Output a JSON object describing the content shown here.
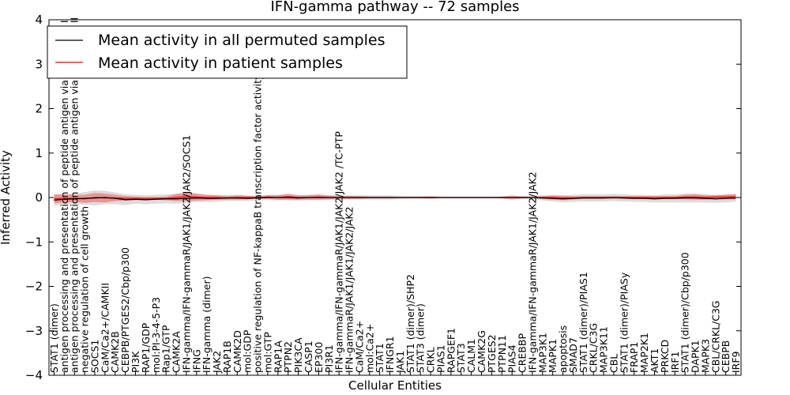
{
  "chart_data": {
    "type": "line",
    "title": "IFN-gamma pathway -- 72 samples",
    "xlabel": "Cellular Entities",
    "ylabel": "Inferred Activity",
    "ylim": [
      -4,
      4
    ],
    "yticks": [
      "4",
      "3",
      "2",
      "1",
      "0",
      "−1",
      "−2",
      "−3",
      "−4"
    ],
    "ytick_values": [
      4,
      3,
      2,
      1,
      0,
      -1,
      -2,
      -3,
      -4
    ],
    "grid": false,
    "legend_position": "top-left",
    "categories": [
      "STAT1 (dimer)",
      "antigen processing and presentation of peptide antigen via MHC class I",
      "antigen processing and presentation of peptide antigen via MHC class II",
      "negative regulation of cell growth",
      "SOCS1",
      "CaM/Ca2+/CAMKII",
      "CAMK2B",
      "CEBPB/PTGES2/Cbp/p300",
      "PI3K",
      "RAP1/GDP",
      "mol:PI-3-4-5-P3",
      "Rap1/GTP",
      "CAMK2A",
      "IFN-gamma/IFN-gammaR/JAK1/JAK2/JAK2/SOCS1",
      "IFNG",
      "IFN-gamma (dimer)",
      "JAK2",
      "RAP1B",
      "CAMK2D",
      "mol:GDP",
      "positive regulation of NF-kappaB transcription factor activity",
      "mol:GTP",
      "RAP1A",
      "PTPN2",
      "PIK3CA",
      "CASP1",
      "EP300",
      "PI3R1",
      "IFN-gamma/IFN-gammaR/JAK1/JAK2/JAK2 /TC-PTP",
      "IFN-gammaR/JAK1/JAK1/JAK2/JAK2",
      "CaM/Ca2+",
      "mol:Ca2+",
      "STAT1",
      "IFNGR1",
      "JAK1",
      "STAT1 (dimer)/SHP2",
      "STAT3 (dimer)",
      "CRKL",
      "PIAS1",
      "RAPGEF1",
      "STAT3",
      "CALM1",
      "CAMK2G",
      "PTGES2",
      "PTPN11",
      "PIAS4",
      "CREBBP",
      "IFN-gamma/IFN-gammaR/JAK1/JAK2/JAK2",
      "MAP3K1",
      "MAPK1",
      "apoptosis",
      "SMAD7",
      "STAT1 (dimer)/PIAS1",
      "CRKL/C3G",
      "MAP3K11",
      "CBL",
      "STAT1 (dimer)/PIASy",
      "FRAP1",
      "MAP2K1",
      "AKT1",
      "PRKCD",
      "IRF1",
      "STAT1 (dimer)/Cbp/p300",
      "DAPK1",
      "MAPK3",
      "CBL/CRKL/C3G",
      "CEBPB",
      "IRF9"
    ],
    "series": [
      {
        "name": "Mean activity in all permuted samples",
        "color": "#000000",
        "values": [
          -0.06,
          -0.04,
          -0.03,
          -0.02,
          -0.01,
          0.0,
          -0.02,
          -0.05,
          -0.04,
          -0.05,
          -0.04,
          -0.03,
          -0.03,
          -0.02,
          -0.01,
          -0.02,
          -0.02,
          -0.01,
          -0.01,
          -0.02,
          -0.01,
          0.0,
          0.0,
          0.0,
          -0.01,
          0.0,
          0.0,
          0.0,
          0.0,
          0.0,
          0.0,
          0.0,
          0.0,
          0.0,
          0.0,
          0.0,
          0.0,
          0.0,
          0.0,
          0.0,
          0.0,
          0.0,
          0.0,
          0.0,
          0.0,
          0.0,
          0.0,
          0.0,
          -0.01,
          -0.02,
          -0.03,
          -0.02,
          -0.01,
          -0.01,
          -0.01,
          0.0,
          -0.01,
          -0.02,
          -0.02,
          -0.03,
          -0.02,
          -0.02,
          -0.01,
          -0.01,
          -0.02,
          -0.03,
          -0.02,
          -0.01
        ],
        "spread": [
          0.12,
          0.12,
          0.12,
          0.14,
          0.17,
          0.15,
          0.13,
          0.12,
          0.1,
          0.1,
          0.1,
          0.1,
          0.11,
          0.1,
          0.09,
          0.08,
          0.08,
          0.07,
          0.07,
          0.06,
          0.06,
          0.06,
          0.06,
          0.06,
          0.06,
          0.06,
          0.06,
          0.06,
          0.05,
          0.05,
          0.05,
          0.05,
          0.05,
          0.05,
          0.04,
          0.03,
          0.02,
          0.02,
          0.02,
          0.02,
          0.02,
          0.02,
          0.02,
          0.02,
          0.02,
          0.02,
          0.03,
          0.04,
          0.06,
          0.07,
          0.08,
          0.08,
          0.08,
          0.08,
          0.08,
          0.08,
          0.08,
          0.08,
          0.08,
          0.08,
          0.09,
          0.09,
          0.1,
          0.1,
          0.09,
          0.09,
          0.09,
          0.08
        ]
      },
      {
        "name": "Mean activity in patient samples",
        "color": "#ff0000",
        "values": [
          -0.03,
          -0.02,
          -0.02,
          -0.03,
          0.0,
          -0.01,
          -0.01,
          -0.02,
          -0.02,
          -0.02,
          -0.02,
          -0.02,
          0.0,
          0.02,
          0.01,
          0.0,
          0.0,
          -0.01,
          0.0,
          0.0,
          0.0,
          0.01,
          0.0,
          0.02,
          0.0,
          0.0,
          0.01,
          0.0,
          0.0,
          0.0,
          0.0,
          0.0,
          0.0,
          0.0,
          0.0,
          0.0,
          0.0,
          0.0,
          0.0,
          0.0,
          0.0,
          0.0,
          0.0,
          0.0,
          0.0,
          0.0,
          0.0,
          0.0,
          0.0,
          0.0,
          -0.01,
          -0.01,
          0.0,
          0.0,
          0.0,
          0.0,
          0.0,
          0.0,
          0.0,
          0.0,
          0.0,
          0.0,
          0.01,
          0.01,
          0.0,
          0.01,
          0.01,
          0.02
        ],
        "spread": [
          0.1,
          0.09,
          0.08,
          0.09,
          0.1,
          0.1,
          0.07,
          0.05,
          0.04,
          0.03,
          0.03,
          0.04,
          0.08,
          0.1,
          0.08,
          0.06,
          0.05,
          0.04,
          0.05,
          0.04,
          0.02,
          0.04,
          0.05,
          0.07,
          0.05,
          0.05,
          0.06,
          0.04,
          0.03,
          0.03,
          0.03,
          0.02,
          0.02,
          0.02,
          0.01,
          0.01,
          0.02,
          0.03,
          0.01,
          0.01,
          0.01,
          0.01,
          0.01,
          0.01,
          0.02,
          0.05,
          0.02,
          0.01,
          0.03,
          0.05,
          0.05,
          0.04,
          0.03,
          0.03,
          0.03,
          0.03,
          0.03,
          0.03,
          0.03,
          0.03,
          0.03,
          0.03,
          0.05,
          0.06,
          0.05,
          0.04,
          0.05,
          0.06
        ]
      }
    ]
  }
}
